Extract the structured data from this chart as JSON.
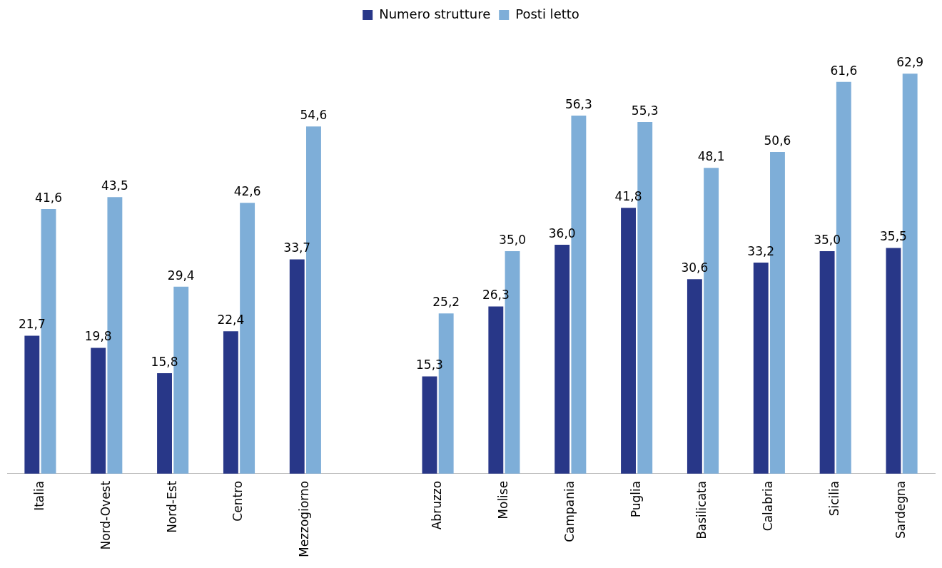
{
  "chart_data": {
    "type": "bar",
    "categories": [
      "Italia",
      "Nord-Ovest",
      "Nord-Est",
      "Centro",
      "Mezzogiorno",
      null,
      "Abruzzo",
      "Molise",
      "Campania",
      "Puglia",
      "Basilicata",
      "Calabria",
      "Sicilia",
      "Sardegna"
    ],
    "series": [
      {
        "name": "Numero strutture",
        "color": "#283788",
        "values": [
          21.7,
          19.8,
          15.8,
          22.4,
          33.7,
          null,
          15.3,
          26.3,
          36.0,
          41.8,
          30.6,
          33.2,
          35.0,
          35.5
        ],
        "value_labels": [
          "21,7",
          "19,8",
          "15,8",
          "22,4",
          "33,7",
          null,
          "15,3",
          "26,3",
          "36,0",
          "41,8",
          "30,6",
          "33,2",
          "35,0",
          "35,5"
        ]
      },
      {
        "name": "Posti letto",
        "color": "#7eaed8",
        "values": [
          41.6,
          43.5,
          29.4,
          42.6,
          54.6,
          null,
          25.2,
          35.0,
          56.3,
          55.3,
          48.1,
          50.6,
          61.6,
          62.9
        ],
        "value_labels": [
          "41,6",
          "43,5",
          "29,4",
          "42,6",
          "54,6",
          null,
          "25,2",
          "35,0",
          "56,3",
          "55,3",
          "48,1",
          "50,6",
          "61,6",
          "62,9"
        ]
      }
    ],
    "legend": "top",
    "grid": false,
    "tick_labels": "x"
  }
}
